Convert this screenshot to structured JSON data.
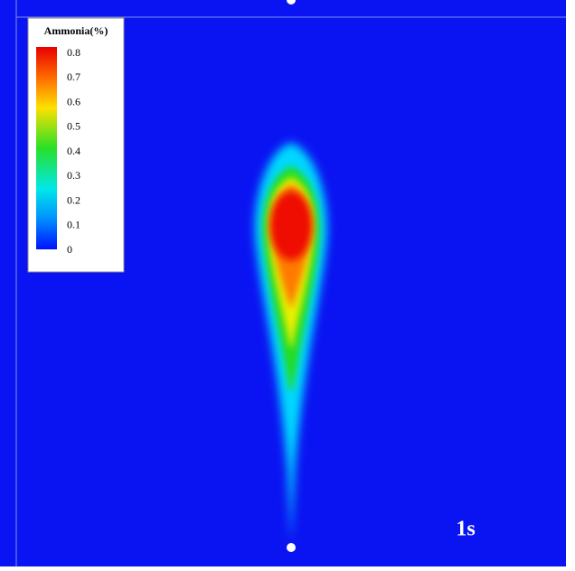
{
  "legend": {
    "title": "Ammonia(%)",
    "ticks": [
      "0.8",
      "0.7",
      "0.6",
      "0.5",
      "0.4",
      "0.3",
      "0.2",
      "0.1",
      "0"
    ]
  },
  "time_label": "1s"
}
